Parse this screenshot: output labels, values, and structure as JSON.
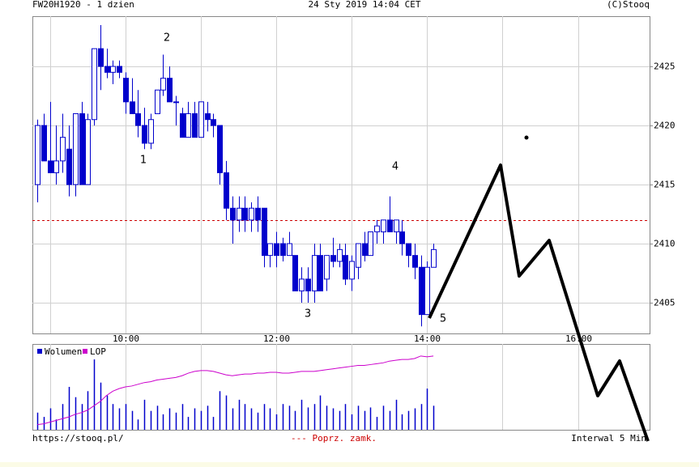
{
  "chart_data": [
    {
      "type": "candlestick",
      "title": "FW20H1920 - 1 dzien",
      "subtitle": "24 Sty 2019 14:04 CET",
      "source": "(C)Stooq",
      "url": "https://stooq.pl/",
      "interval": "Interwal 5 Min",
      "color": "#0000cc",
      "x": [
        530,
        535,
        540,
        545,
        550,
        555,
        560,
        565,
        570,
        575,
        580,
        585,
        590,
        595,
        600,
        605,
        610,
        615,
        620,
        625,
        630,
        635,
        640,
        645,
        650,
        655,
        660,
        665,
        670,
        675,
        680,
        685,
        690,
        695,
        700,
        705,
        710,
        715,
        720,
        725,
        730,
        735,
        740,
        745,
        750,
        755,
        760,
        765,
        770,
        775,
        780,
        785,
        790,
        795,
        800,
        805,
        810,
        815,
        820,
        825,
        830,
        835,
        840,
        845
      ],
      "open": [
        2415,
        2420,
        2417,
        2416,
        2417,
        2418,
        2415,
        2421,
        2415,
        2420.5,
        2426.5,
        2425,
        2424.5,
        2425,
        2424,
        2422,
        2421,
        2420,
        2418.5,
        2421,
        2423,
        2424,
        2422,
        2421,
        2419,
        2421,
        2419,
        2421,
        2420.5,
        2420,
        2416,
        2413,
        2412,
        2413,
        2412,
        2413,
        2413,
        2409,
        2410,
        2410,
        2409,
        2409,
        2406,
        2407,
        2406,
        2409,
        2407,
        2409,
        2408.5,
        2409,
        2407,
        2408,
        2410,
        2409,
        2411,
        2411,
        2412,
        2411,
        2411,
        2410,
        2409,
        2408,
        2404,
        2408
      ],
      "high": [
        2420.5,
        2421,
        2422,
        2420,
        2421,
        2420,
        2421,
        2422,
        2421,
        2426.5,
        2428.5,
        2426.5,
        2425.5,
        2425.5,
        2424.5,
        2424,
        2423,
        2421.5,
        2421,
        2423,
        2426,
        2425,
        2422.5,
        2421.5,
        2422,
        2422,
        2422,
        2422,
        2421,
        2420,
        2417,
        2414,
        2414,
        2414,
        2413.5,
        2414,
        2413,
        2410,
        2411,
        2410.5,
        2411,
        2409,
        2408,
        2408,
        2410,
        2410,
        2409,
        2410.5,
        2410,
        2410,
        2409,
        2410,
        2411,
        2411,
        2412,
        2412,
        2414,
        2412,
        2412,
        2410,
        2410,
        2409,
        2408.5,
        2410
      ],
      "low": [
        2413.5,
        2417,
        2416,
        2415,
        2416,
        2414,
        2414,
        2415,
        2415,
        2420,
        2423,
        2424,
        2423.5,
        2424,
        2421,
        2421,
        2419,
        2418,
        2418,
        2421,
        2422.5,
        2422,
        2420,
        2419,
        2419,
        2419,
        2419,
        2419.5,
        2419,
        2415,
        2412,
        2410,
        2411,
        2411,
        2411,
        2411,
        2408,
        2408,
        2408,
        2408.5,
        2409,
        2406,
        2405,
        2405,
        2405,
        2406,
        2406,
        2408,
        2408,
        2406.5,
        2406,
        2407,
        2408.5,
        2409,
        2410,
        2410,
        2411,
        2410,
        2409,
        2408,
        2407,
        2403,
        2404,
        2408
      ],
      "close": [
        2420,
        2417,
        2416,
        2417,
        2419,
        2415,
        2421,
        2415,
        2420.5,
        2426.5,
        2425,
        2424.5,
        2425,
        2424.5,
        2422,
        2421,
        2420,
        2418.5,
        2420.5,
        2423,
        2424,
        2422,
        2422,
        2419,
        2421,
        2419,
        2422,
        2420.5,
        2420,
        2416,
        2413,
        2412,
        2413,
        2412,
        2413,
        2412,
        2409,
        2410,
        2409,
        2409,
        2410,
        2406,
        2407,
        2406,
        2409,
        2406,
        2409,
        2408.5,
        2409.5,
        2407,
        2408.5,
        2410,
        2409,
        2411,
        2411.5,
        2412,
        2411,
        2412,
        2410,
        2409,
        2408,
        2404,
        2408,
        2409.5
      ],
      "xlim": [
        526,
        1017
      ],
      "xticks": [
        {
          "value": 600,
          "label": "10:00"
        },
        {
          "value": 720,
          "label": "12:00"
        },
        {
          "value": 840,
          "label": "14:00"
        },
        {
          "value": 960,
          "label": "16:00"
        }
      ],
      "xgrid": [
        540,
        660,
        780,
        900
      ],
      "ylim": [
        2402.4,
        2429.25
      ],
      "yticks": [
        2405,
        2410,
        2415,
        2420,
        2425
      ],
      "prev_close": {
        "value": 2412,
        "label": "--- Poprz. zamk.",
        "color": "#cc0000"
      },
      "annotations": [
        "1",
        "2",
        "3",
        "4",
        "5"
      ]
    },
    {
      "type": "bar",
      "ylim": [
        0,
        100
      ],
      "series": [
        {
          "name": "Wolumen",
          "color": "#0000cc",
          "values": [
            20,
            15,
            25,
            12,
            30,
            50,
            38,
            30,
            45,
            82,
            55,
            40,
            30,
            25,
            30,
            22,
            12,
            35,
            22,
            28,
            18,
            25,
            20,
            30,
            15,
            25,
            22,
            28,
            15,
            45,
            40,
            25,
            35,
            30,
            25,
            20,
            30,
            25,
            18,
            30,
            28,
            22,
            35,
            26,
            30,
            40,
            28,
            25,
            22,
            30,
            18,
            28,
            22,
            26,
            15,
            28,
            22,
            35,
            18,
            22,
            25,
            30,
            48,
            28
          ]
        },
        {
          "name": "LOP",
          "type": "line",
          "color": "#cc00cc",
          "values": [
            6,
            7,
            9,
            11,
            13,
            15,
            18,
            20,
            23,
            28,
            33,
            40,
            45,
            48,
            50,
            51,
            53,
            55,
            56,
            58,
            59,
            60,
            61,
            63,
            66,
            68,
            69,
            69,
            68,
            66,
            64,
            63,
            64,
            65,
            65,
            66,
            66,
            67,
            67,
            66,
            66,
            67,
            68,
            68,
            68,
            69,
            70,
            71,
            72,
            73,
            74,
            75,
            75,
            76,
            77,
            78,
            80,
            81,
            82,
            82,
            83,
            86,
            85,
            86
          ]
        }
      ]
    }
  ]
}
